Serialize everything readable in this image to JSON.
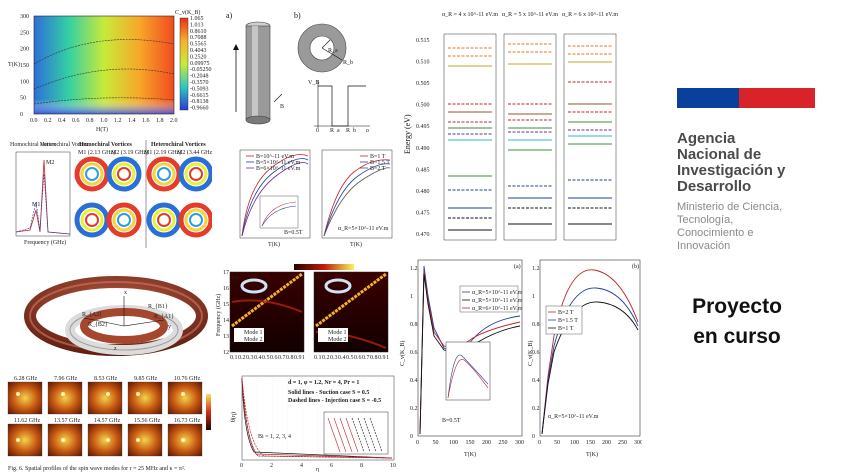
{
  "brand": {
    "flag_colors": {
      "blue": "#0b3f9c",
      "red": "#d8232a"
    },
    "agency_name": "Agencia\nNacional de\nInvestigación y\nDesarrollo",
    "ministry": "Ministerio de Ciencia,\nTecnología,\nConocimiento e\nInnovación",
    "project_status": "Proyecto\nen curso"
  },
  "fig_heatmap": {
    "ylabel": "T(K)",
    "xlabel": "H(T)",
    "yticks": [
      "0",
      "50",
      "100",
      "150",
      "200",
      "250",
      "300"
    ],
    "xticks": [
      "0.0",
      "0.2",
      "0.4",
      "0.6",
      "0.8",
      "1.0",
      "1.2",
      "1.4",
      "1.6",
      "1.8",
      "2.0"
    ],
    "colorbar_title": "C_v(K_B)",
    "colorbar_ticks": [
      "1.065",
      "1.013",
      "0.8610",
      "0.7088",
      "0.5565",
      "0.4043",
      "0.2520",
      "0.09975",
      "-0.05250",
      "-0.2048",
      "-0.3570",
      "-0.5093",
      "-0.6615",
      "-0.8138",
      "-0.9660"
    ]
  },
  "fig_nanotube": {
    "label_a": "a)",
    "label_b": "b)",
    "b_arrow": "B",
    "vb": "V_B",
    "axis_labels": [
      "0",
      "R_a",
      "R_b",
      "ρ"
    ],
    "rin": "R_a",
    "rout": "R_b"
  },
  "fig_vortices": {
    "header_left": "Homochiral Vortices",
    "header_right": "Heterochiral Vortices",
    "legend": [
      "Homochiral Vortex",
      "Heterochiral Vortex"
    ],
    "xlabel": "Frequency (GHz)",
    "ylabel": "Spectral amplitude",
    "mode_labels": [
      "M1 (2.13 GHz)",
      "M2 (3.19 GHz)",
      "M1 (2.19 GHz)",
      "M2 (3.44 GHz)"
    ],
    "peaks": [
      "M1",
      "M2"
    ]
  },
  "fig_curves": {
    "legend_left": [
      "B=10^-11 eV.m",
      "B=5×10^-11 eV.m",
      "B=6×10^-11 eV.m"
    ],
    "legend_right": [
      "B=1 T",
      "B=1.5 T",
      "B=2 T"
    ],
    "note_left": "B=0.5T",
    "note_right": "α_R=5×10^-11 eV.m",
    "xlabel": "T(K)"
  },
  "fig_energy": {
    "ylabel": "Energy (eV)",
    "col_titles": [
      "α_R = 4 x 10^-11 eV.m",
      "α_R = 5 x 10^-11 eV.m",
      "α_R = 6 x 10^-11 eV.m"
    ],
    "yticks": [
      "0.515",
      "0.510",
      "0.505",
      "0.500",
      "0.495",
      "0.490",
      "0.485",
      "0.480",
      "0.475",
      "0.470"
    ]
  },
  "fig_ring": {
    "labels": [
      "R_{A2}",
      "R_{B2}",
      "R_{A1}",
      "R_{B1}",
      "x",
      "y",
      "z"
    ]
  },
  "fig_spectrum": {
    "ylabel": "Frequency (GHz)",
    "xlabel_ticks": [
      "0.1",
      "0.2",
      "0.3",
      "0.4",
      "0.5",
      "0.6",
      "0.7",
      "0.8",
      "0.9",
      "1"
    ],
    "yticks": [
      "12",
      "13",
      "14",
      "15",
      "16",
      "17"
    ],
    "legend": [
      "Mode 1",
      "Mode 2"
    ],
    "panel_labels": [
      "(a)",
      "(b)"
    ]
  },
  "fig_specific_heat": {
    "panel_a": "(a)",
    "panel_b": "(b)",
    "ylabel_a": "C_v(K_B)",
    "ylabel_b": "C_v(K_B)",
    "xlabel": "T(K)",
    "xticks": [
      "0",
      "50",
      "100",
      "150",
      "200",
      "250",
      "300"
    ],
    "legend_a": [
      "α_R=5×10^-11 eV.m",
      "α_R=5×10^-11 eV.m",
      "α_R=6×10^-11 eV.m"
    ],
    "legend_b": [
      "B=2 T",
      "B=1.5 T",
      "B=1 T"
    ],
    "note_a": "B=0.5T",
    "note_b": "α_R=5×10^-11 eV.m",
    "yticks_a": [
      "0",
      "0.2",
      "0.4",
      "0.6",
      "0.8",
      "1",
      "1.2"
    ],
    "yticks_b": [
      "0",
      "0.2",
      "0.4",
      "0.6",
      "0.8",
      "1",
      "1.2"
    ]
  },
  "fig_spinwave": {
    "freqs_top": [
      "6.28 GHz",
      "7.96 GHz",
      "8.53 GHz",
      "9.85 GHz",
      "10.76 GHz"
    ],
    "freqs_bottom": [
      "11.62 GHz",
      "13.57 GHz",
      "14.57 GHz",
      "15.56 GHz",
      "16.73 GHz"
    ],
    "caption": "Fig. 6. Spatial profiles of the spin wave modes for r = 25 MHz and κ = π²."
  },
  "fig_flow": {
    "legend_line1": "d = 1, φ = 1.2, Nr = 4, Pr = 1",
    "legend_line2": "Solid lines - Suction case S = 0.5",
    "legend_line3": "Dashed lines - Injection case S = -0.5",
    "annotation": "Bi = 1, 2, 3, 4",
    "xlabel": "η",
    "ylabel": "θ(η)",
    "xticks": [
      "0",
      "2",
      "4",
      "6",
      "8",
      "10"
    ]
  }
}
